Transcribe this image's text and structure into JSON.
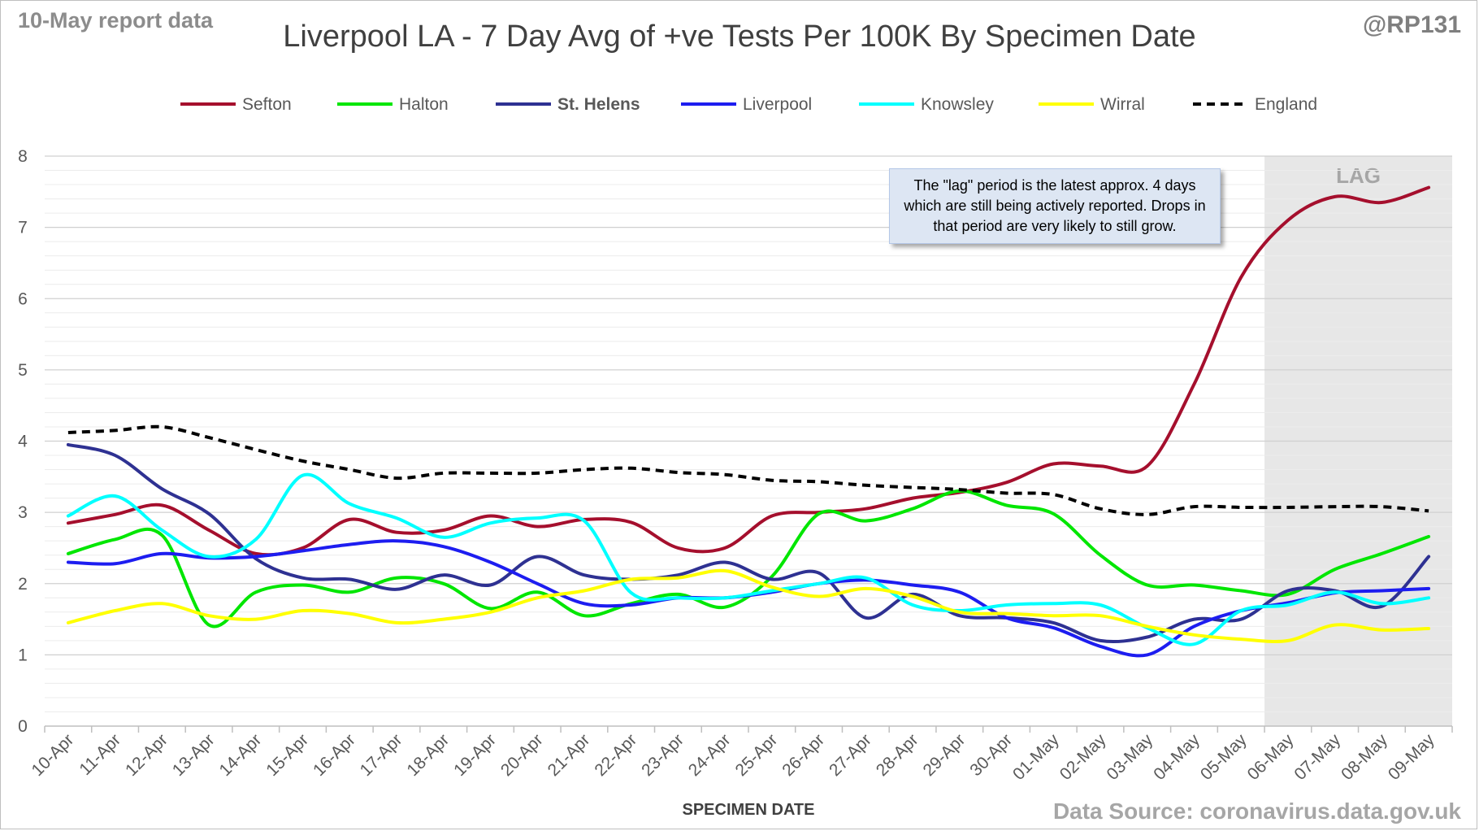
{
  "header": {
    "report_label": "10-May report data",
    "handle": "@RP131"
  },
  "footer": {
    "source": "Data Source: coronavirus.data.gov.uk"
  },
  "annotation": {
    "note": "The \"lag\" period is the latest approx. 4 days which are still being actively reported. Drops in that period are very likely to still grow.",
    "lag_label": "LAG"
  },
  "chart_data": {
    "type": "line",
    "title": "Liverpool LA - 7 Day Avg of +ve Tests Per 100K By Specimen Date",
    "xlabel": "SPECIMEN DATE",
    "ylabel": "",
    "ylim": [
      0,
      8
    ],
    "yticks": [
      0,
      1,
      2,
      3,
      4,
      5,
      6,
      7,
      8
    ],
    "grid": true,
    "legend_position": "top",
    "lag_start": "06-May",
    "categories": [
      "10-Apr",
      "11-Apr",
      "12-Apr",
      "13-Apr",
      "14-Apr",
      "15-Apr",
      "16-Apr",
      "17-Apr",
      "18-Apr",
      "19-Apr",
      "20-Apr",
      "21-Apr",
      "22-Apr",
      "23-Apr",
      "24-Apr",
      "25-Apr",
      "26-Apr",
      "27-Apr",
      "28-Apr",
      "29-Apr",
      "30-Apr",
      "01-May",
      "02-May",
      "03-May",
      "04-May",
      "05-May",
      "06-May",
      "07-May",
      "08-May",
      "09-May"
    ],
    "series": [
      {
        "name": "Sefton",
        "color": "#a50f2d",
        "dashed": false,
        "bold": false,
        "values": [
          2.85,
          2.97,
          3.1,
          2.75,
          2.42,
          2.5,
          2.9,
          2.72,
          2.75,
          2.95,
          2.8,
          2.9,
          2.86,
          2.5,
          2.5,
          2.95,
          3.0,
          3.05,
          3.2,
          3.28,
          3.42,
          3.68,
          3.65,
          3.65,
          4.8,
          6.3,
          7.1,
          7.43,
          7.35,
          7.56
        ]
      },
      {
        "name": "Halton",
        "color": "#00e600",
        "dashed": false,
        "bold": false,
        "values": [
          2.42,
          2.62,
          2.68,
          1.42,
          1.88,
          1.98,
          1.88,
          2.08,
          2.0,
          1.65,
          1.88,
          1.55,
          1.72,
          1.85,
          1.67,
          2.1,
          2.98,
          2.88,
          3.05,
          3.3,
          3.1,
          2.98,
          2.4,
          1.98,
          1.98,
          1.9,
          1.85,
          2.2,
          2.42,
          2.66
        ]
      },
      {
        "name": "St. Helens",
        "color": "#2e3192",
        "dashed": false,
        "bold": true,
        "values": [
          3.95,
          3.8,
          3.33,
          2.98,
          2.35,
          2.08,
          2.06,
          1.92,
          2.12,
          1.98,
          2.38,
          2.12,
          2.06,
          2.12,
          2.3,
          2.06,
          2.15,
          1.52,
          1.85,
          1.55,
          1.52,
          1.45,
          1.2,
          1.25,
          1.5,
          1.5,
          1.9,
          1.9,
          1.68,
          2.38
        ]
      },
      {
        "name": "Liverpool",
        "color": "#1d1df0",
        "dashed": false,
        "bold": false,
        "values": [
          2.3,
          2.28,
          2.42,
          2.36,
          2.38,
          2.46,
          2.55,
          2.6,
          2.52,
          2.3,
          2.0,
          1.72,
          1.7,
          1.8,
          1.8,
          1.88,
          2.0,
          2.05,
          1.98,
          1.88,
          1.52,
          1.38,
          1.12,
          1.0,
          1.4,
          1.62,
          1.73,
          1.87,
          1.9,
          1.93
        ]
      },
      {
        "name": "Knowsley",
        "color": "#00ffff",
        "dashed": false,
        "bold": false,
        "values": [
          2.95,
          3.23,
          2.75,
          2.38,
          2.62,
          3.52,
          3.12,
          2.92,
          2.65,
          2.85,
          2.92,
          2.88,
          1.87,
          1.8,
          1.8,
          1.9,
          2.0,
          2.08,
          1.7,
          1.62,
          1.7,
          1.72,
          1.7,
          1.38,
          1.15,
          1.62,
          1.7,
          1.88,
          1.72,
          1.8
        ]
      },
      {
        "name": "Wirral",
        "color": "#ffff00",
        "dashed": false,
        "bold": false,
        "values": [
          1.45,
          1.62,
          1.72,
          1.55,
          1.5,
          1.62,
          1.58,
          1.45,
          1.5,
          1.6,
          1.8,
          1.9,
          2.06,
          2.08,
          2.18,
          1.95,
          1.82,
          1.93,
          1.82,
          1.6,
          1.58,
          1.55,
          1.55,
          1.4,
          1.28,
          1.22,
          1.2,
          1.42,
          1.35,
          1.37
        ]
      },
      {
        "name": "England",
        "color": "#000000",
        "dashed": true,
        "bold": false,
        "values": [
          4.12,
          4.15,
          4.2,
          4.05,
          3.88,
          3.72,
          3.6,
          3.48,
          3.55,
          3.55,
          3.55,
          3.6,
          3.62,
          3.56,
          3.53,
          3.45,
          3.43,
          3.38,
          3.35,
          3.32,
          3.27,
          3.25,
          3.05,
          2.97,
          3.08,
          3.07,
          3.07,
          3.08,
          3.08,
          3.02
        ]
      }
    ]
  }
}
